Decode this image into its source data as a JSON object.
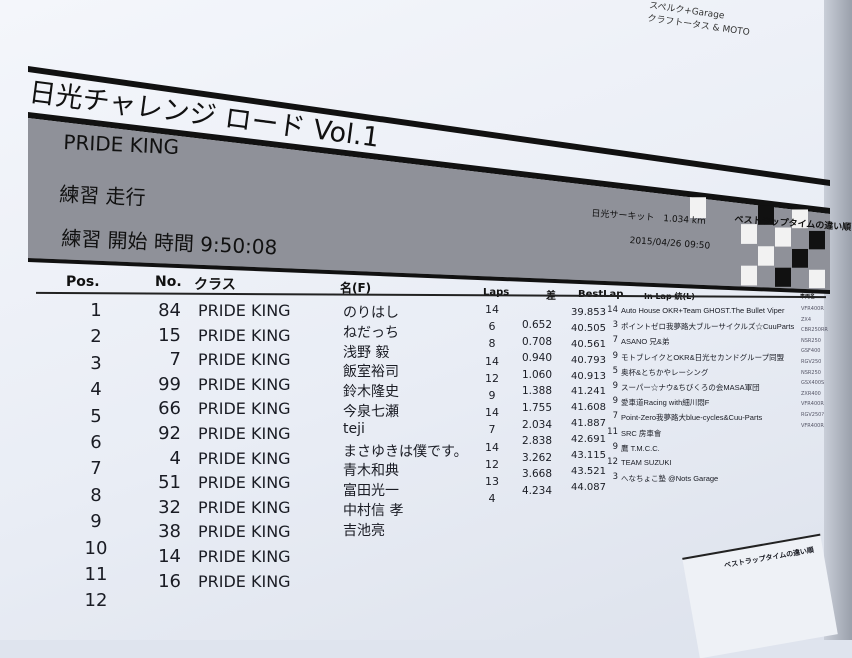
{
  "background_sheet": {
    "lines": [
      "スペルク+Garage",
      "クラフトータス & MOTO"
    ]
  },
  "header": {
    "title": "日光チャレンジ ロード Vol.1",
    "class_name": "PRIDE KING",
    "session": "練習 走行",
    "start_time": "練習 開始 時間 9:50:08",
    "circuit": "日光サーキット　1.034 km",
    "datetime": "2015/04/26 09:50",
    "sort_note": "ベストラップタイムの違い順"
  },
  "colors": {
    "band": "#8f9199",
    "checker_dark": "#111111",
    "checker_light": "#f2f2f2"
  },
  "table": {
    "headers": {
      "pos": "Pos.",
      "no": "No.",
      "class": "クラス",
      "name": "名(F)",
      "laps": "Laps",
      "diff": "差",
      "best": "BestLap",
      "inlap": "In Lap 統(L)",
      "vehicle": "車両名"
    },
    "pos": [
      "1",
      "2",
      "3",
      "4",
      "5",
      "6",
      "7",
      "8",
      "9",
      "10",
      "11",
      "12"
    ],
    "no": [
      "84",
      "15",
      "7",
      "99",
      "66",
      "92",
      "4",
      "51",
      "32",
      "38",
      "14",
      "16"
    ],
    "class": [
      "PRIDE KING",
      "PRIDE KING",
      "PRIDE KING",
      "PRIDE KING",
      "PRIDE KING",
      "PRIDE KING",
      "PRIDE KING",
      "PRIDE KING",
      "PRIDE KING",
      "PRIDE KING",
      "PRIDE KING",
      "PRIDE KING"
    ],
    "name": [
      "のりはし",
      "ねだっち",
      "浅野 毅",
      "飯室裕司",
      "鈴木隆史",
      "今泉七瀬",
      "teji",
      "まさゆきは僕です。",
      "青木和典",
      "富田光一",
      "中村信 孝",
      "吉池亮"
    ],
    "laps": [
      "14",
      "6",
      "8",
      "14",
      "12",
      "9",
      "14",
      "7",
      "14",
      "12",
      "13",
      "4"
    ],
    "diff": [
      "0.652",
      "0.708",
      "0.940",
      "1.060",
      "1.388",
      "1.755",
      "2.034",
      "2.838",
      "3.262",
      "3.668",
      "4.234"
    ],
    "best": [
      "39.853",
      "40.505",
      "40.561",
      "40.793",
      "40.913",
      "41.241",
      "41.608",
      "41.887",
      "42.691",
      "43.115",
      "43.521",
      "44.087"
    ],
    "inlap": [
      "14",
      "3",
      "7",
      "9",
      "5",
      "9",
      "9",
      "7",
      "11",
      "9",
      "12",
      "3"
    ],
    "team": [
      "Auto House OKR+Team GHOST.The Bullet Viper",
      "ポイントゼロ我夢路大ブルーサイクルズ☆CuuParts",
      "ASANO 兄&弟",
      "モトブレイクとOKR&日光セカンドグループ同盟",
      "奥杯&とちかやレーシング",
      "スーパー☆ナウ&ちびくろの会MASA軍団",
      "愛車道Racing with細川悶F",
      "Point-Zero我夢路大blue-cycles&Cuu-Parts",
      "SRC 房車會",
      "鷹 T.M.C.C.",
      "TEAM SUZUKI",
      "へなちょこ塾 @Nots Garage"
    ],
    "vehicle": [
      "VFR400R",
      "ZX4",
      "CBR250RR",
      "NSR250",
      "GSF400",
      "RGV250",
      "NSR250",
      "GSX400S",
      "ZXR400",
      "VFR400R",
      "RGV250?",
      "VFR400R"
    ]
  },
  "lower_sheet": {
    "sort_note": "ベストラップタイムの違い順"
  }
}
